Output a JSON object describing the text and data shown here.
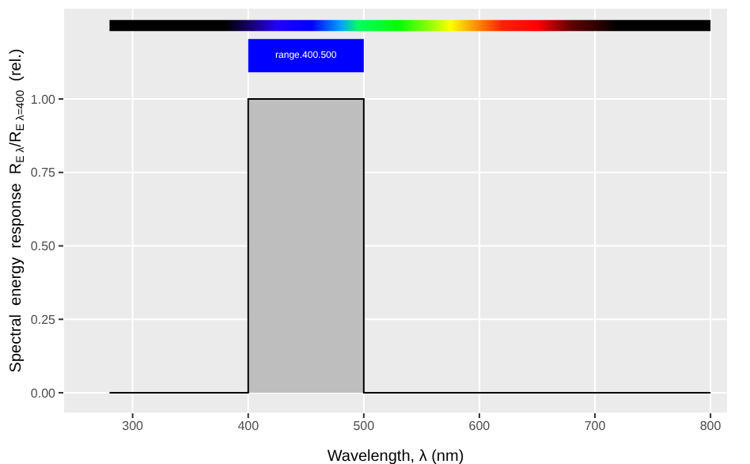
{
  "chart_data": {
    "type": "area",
    "xlabel": "Wavelength, λ (nm)",
    "ylabel": "Spectral  energy  response  R$_{E λ}$/R$_{E λ=400}$  (rel.)",
    "x": [
      280,
      400,
      400,
      500,
      500,
      800
    ],
    "series": [
      {
        "color": "#bebebe",
        "values": [
          0,
          0,
          1,
          1,
          0,
          0
        ]
      }
    ],
    "xlim": [
      240,
      815
    ],
    "xticks": [
      300,
      400,
      500,
      600,
      700,
      800
    ],
    "ylim": [
      -0.07,
      1.31
    ],
    "yticks": [
      {
        "value": 0,
        "label": "0.00"
      },
      {
        "value": 0.25,
        "label": "0.25"
      },
      {
        "value": 0.5,
        "label": "0.50"
      },
      {
        "value": 0.75,
        "label": "0.75"
      },
      {
        "value": 1,
        "label": "1.00"
      }
    ],
    "annotations": [
      "range.400.500"
    ],
    "grid": true,
    "legend": false
  }
}
